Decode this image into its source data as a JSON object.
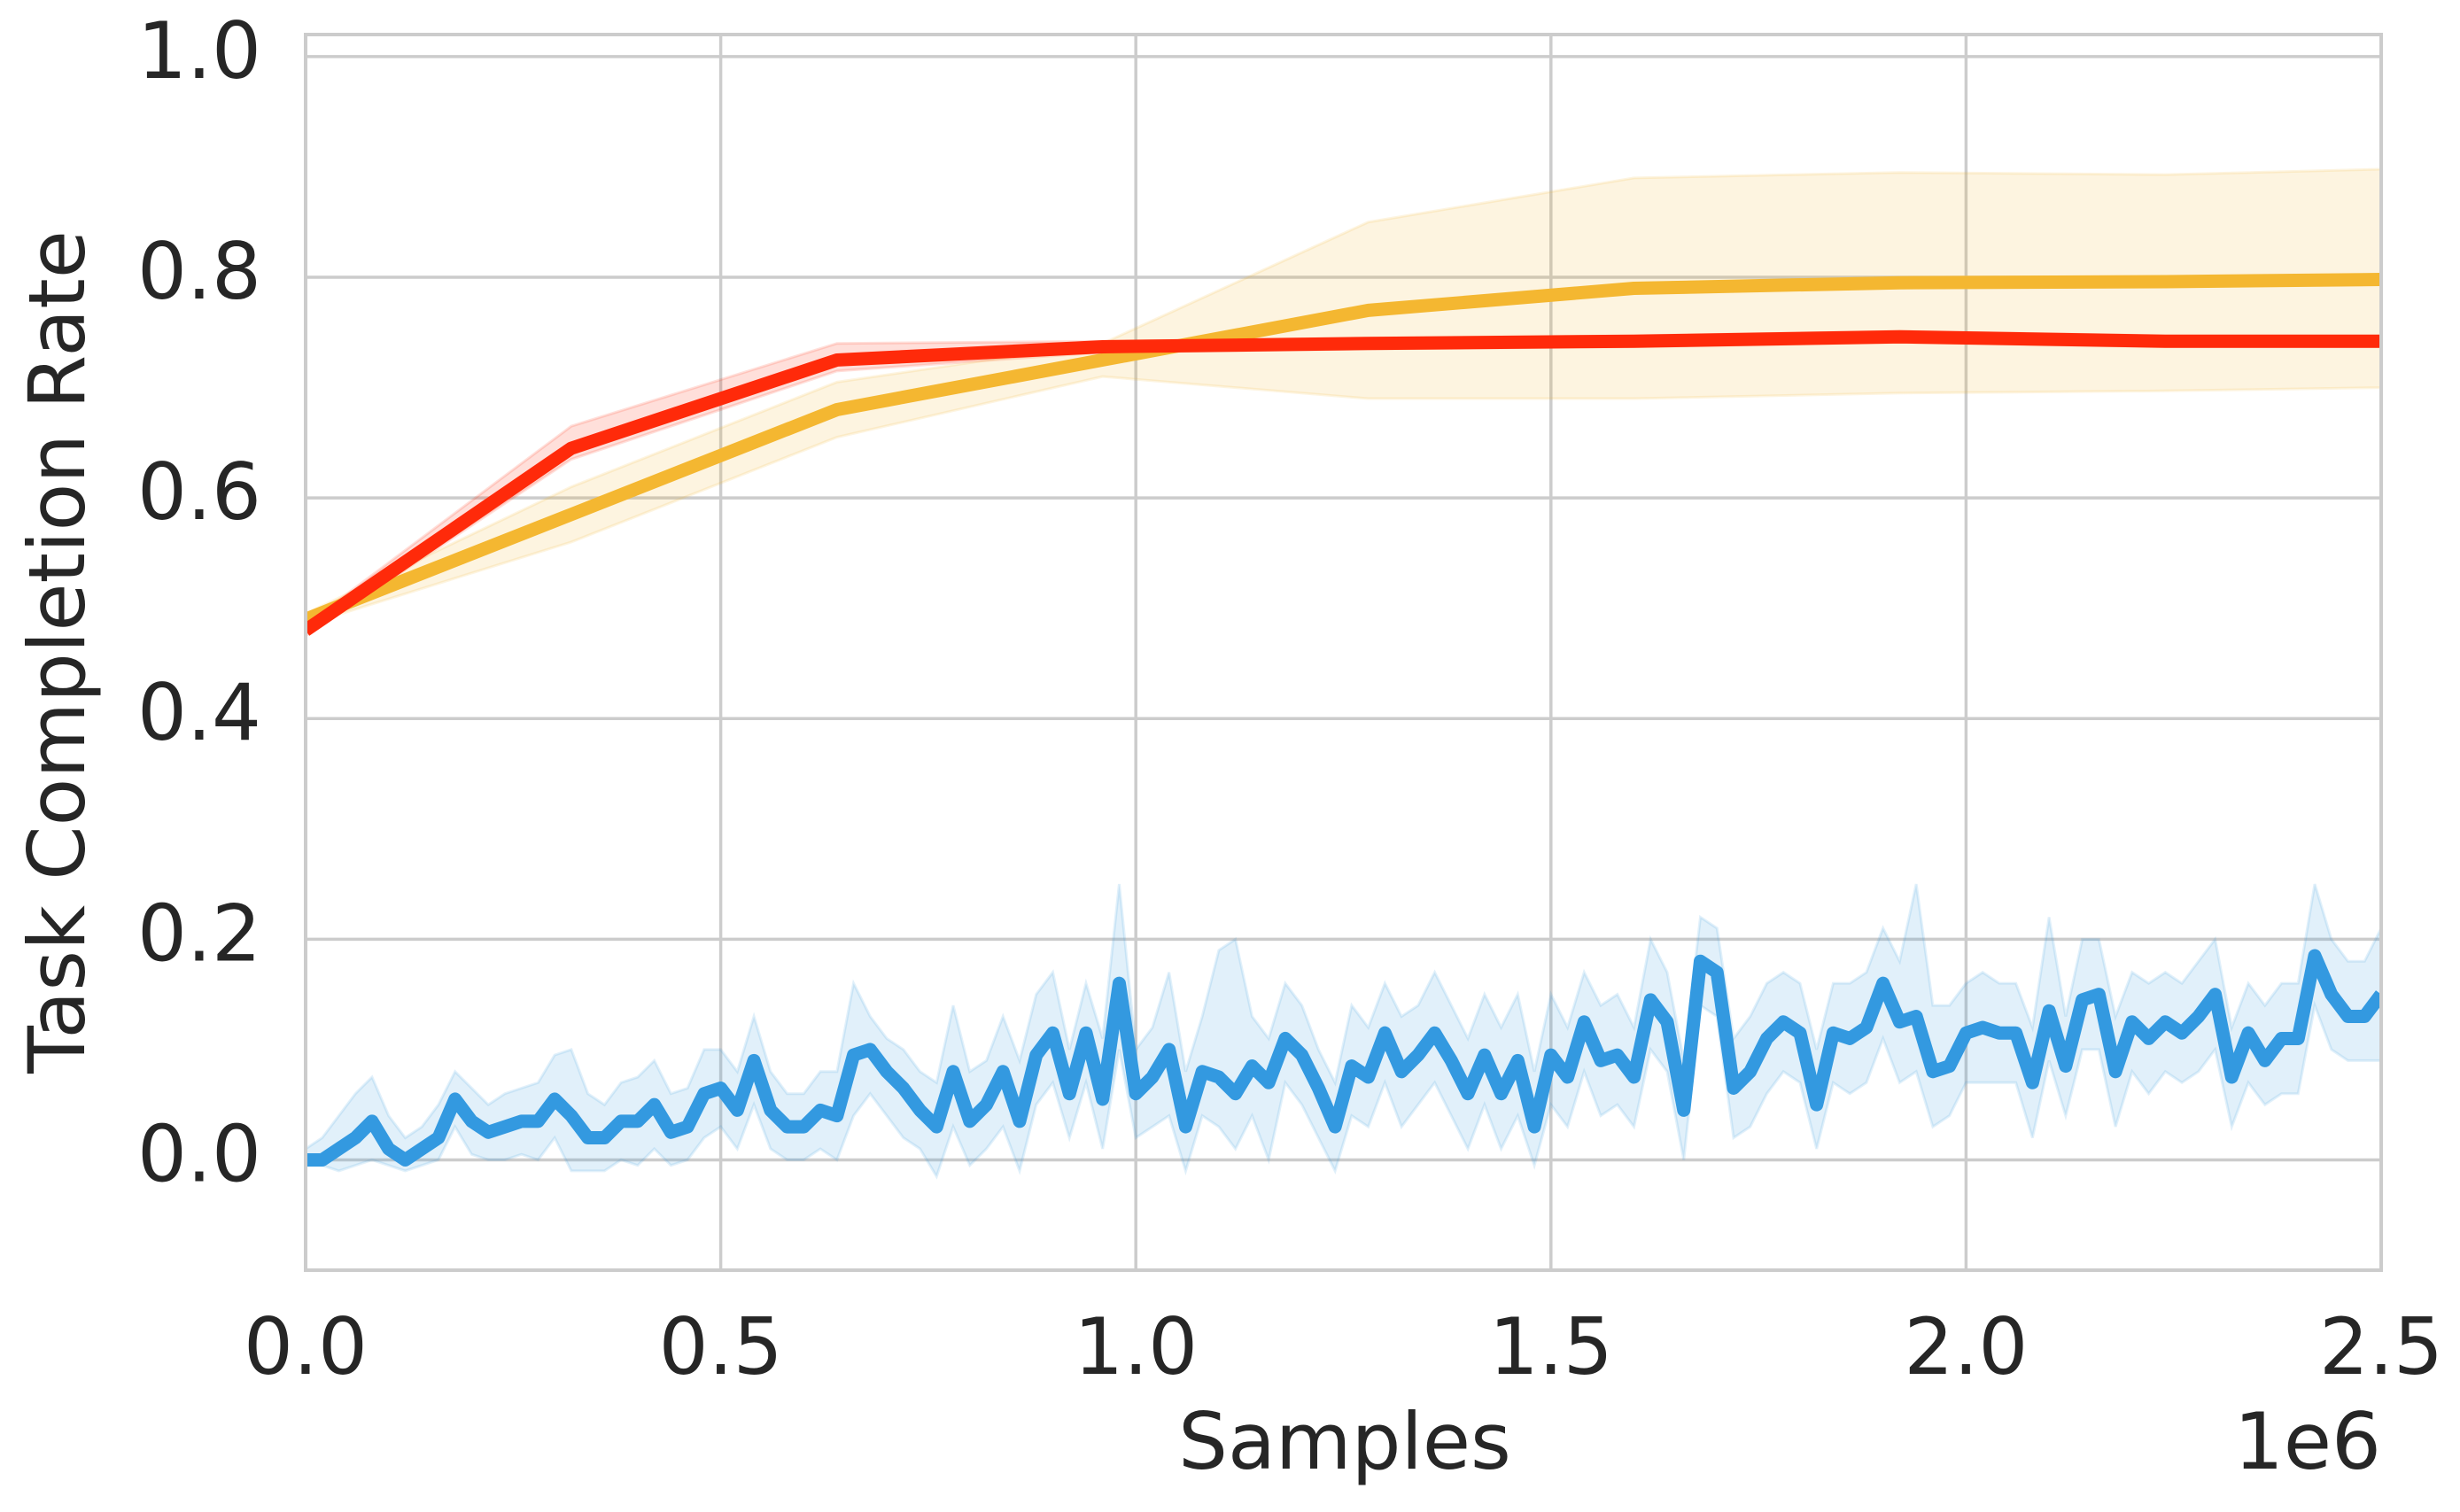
{
  "chart_data": {
    "type": "line",
    "xlabel": "Samples",
    "ylabel": "Task Completion Rate",
    "x_offset_label": "1e6",
    "xlim": [
      0,
      2.5
    ],
    "ylim": [
      -0.1,
      1.02
    ],
    "xticks": [
      {
        "value": 0,
        "label": "0.0"
      },
      0.5,
      {
        "value": 1,
        "label": "1.0"
      },
      1.5,
      {
        "value": 2,
        "label": "2.0"
      },
      2.5
    ],
    "yticks": [
      {
        "value": 0,
        "label": "0.0"
      },
      0.2,
      0.4,
      0.6,
      0.8,
      {
        "value": 1,
        "label": "1.0"
      }
    ],
    "grid": true,
    "series": [
      {
        "color": "#3399e0",
        "x": [
          0,
          0.02,
          0.04,
          0.06,
          0.08,
          0.1,
          0.12,
          0.14,
          0.16,
          0.18,
          0.2,
          0.22,
          0.24,
          0.26,
          0.28,
          0.3,
          0.32,
          0.34,
          0.36,
          0.38,
          0.4,
          0.42,
          0.44,
          0.46,
          0.48,
          0.5,
          0.52,
          0.54,
          0.56,
          0.58,
          0.6,
          0.62,
          0.64,
          0.66,
          0.68,
          0.7,
          0.72,
          0.74,
          0.76,
          0.78,
          0.8,
          0.82,
          0.84,
          0.86,
          0.88,
          0.9,
          0.92,
          0.94,
          0.96,
          0.98,
          1,
          1.02,
          1.04,
          1.06,
          1.08,
          1.1,
          1.12,
          1.14,
          1.16,
          1.18,
          1.2,
          1.22,
          1.24,
          1.26,
          1.28,
          1.3,
          1.32,
          1.34,
          1.36,
          1.38,
          1.4,
          1.42,
          1.44,
          1.46,
          1.48,
          1.5,
          1.52,
          1.54,
          1.56,
          1.58,
          1.6,
          1.62,
          1.64,
          1.66,
          1.68,
          1.7,
          1.72,
          1.74,
          1.76,
          1.78,
          1.8,
          1.82,
          1.84,
          1.86,
          1.88,
          1.9,
          1.92,
          1.94,
          1.96,
          1.98,
          2,
          2.02,
          2.04,
          2.06,
          2.08,
          2.1,
          2.12,
          2.14,
          2.16,
          2.18,
          2.2,
          2.22,
          2.24,
          2.26,
          2.28,
          2.3,
          2.32,
          2.34,
          2.36,
          2.38,
          2.4,
          2.42,
          2.44,
          2.46,
          2.48,
          2.5
        ],
        "values": [
          0,
          0,
          0.01,
          0.02,
          0.035,
          0.01,
          0,
          0.01,
          0.02,
          0.055,
          0.035,
          0.025,
          0.03,
          0.035,
          0.035,
          0.055,
          0.04,
          0.02,
          0.02,
          0.035,
          0.035,
          0.05,
          0.025,
          0.03,
          0.06,
          0.065,
          0.045,
          0.09,
          0.045,
          0.03,
          0.03,
          0.045,
          0.04,
          0.095,
          0.1,
          0.08,
          0.065,
          0.045,
          0.03,
          0.08,
          0.035,
          0.05,
          0.08,
          0.035,
          0.095,
          0.115,
          0.06,
          0.115,
          0.055,
          0.16,
          0.06,
          0.075,
          0.1,
          0.03,
          0.08,
          0.075,
          0.06,
          0.085,
          0.07,
          0.11,
          0.095,
          0.065,
          0.03,
          0.085,
          0.075,
          0.115,
          0.08,
          0.095,
          0.115,
          0.09,
          0.06,
          0.095,
          0.06,
          0.09,
          0.03,
          0.095,
          0.075,
          0.125,
          0.09,
          0.095,
          0.075,
          0.145,
          0.125,
          0.045,
          0.18,
          0.17,
          0.065,
          0.08,
          0.11,
          0.125,
          0.115,
          0.05,
          0.115,
          0.11,
          0.12,
          0.16,
          0.125,
          0.13,
          0.08,
          0.085,
          0.115,
          0.12,
          0.115,
          0.115,
          0.07,
          0.135,
          0.085,
          0.145,
          0.15,
          0.08,
          0.125,
          0.11,
          0.125,
          0.115,
          0.13,
          0.15,
          0.075,
          0.115,
          0.09,
          0.11,
          0.11,
          0.185,
          0.15,
          0.13,
          0.13,
          0.15
        ],
        "upper": [
          0.01,
          0.02,
          0.04,
          0.06,
          0.075,
          0.04,
          0.02,
          0.03,
          0.05,
          0.08,
          0.065,
          0.05,
          0.06,
          0.065,
          0.07,
          0.095,
          0.1,
          0.06,
          0.05,
          0.07,
          0.075,
          0.09,
          0.06,
          0.065,
          0.1,
          0.1,
          0.08,
          0.13,
          0.08,
          0.06,
          0.06,
          0.08,
          0.08,
          0.16,
          0.13,
          0.11,
          0.1,
          0.08,
          0.07,
          0.14,
          0.08,
          0.09,
          0.13,
          0.09,
          0.15,
          0.17,
          0.1,
          0.16,
          0.11,
          0.25,
          0.1,
          0.12,
          0.17,
          0.08,
          0.13,
          0.19,
          0.2,
          0.13,
          0.11,
          0.16,
          0.14,
          0.1,
          0.07,
          0.14,
          0.12,
          0.16,
          0.13,
          0.14,
          0.17,
          0.14,
          0.11,
          0.15,
          0.12,
          0.15,
          0.08,
          0.15,
          0.12,
          0.17,
          0.14,
          0.15,
          0.12,
          0.2,
          0.17,
          0.09,
          0.22,
          0.21,
          0.11,
          0.13,
          0.16,
          0.17,
          0.16,
          0.1,
          0.16,
          0.16,
          0.17,
          0.21,
          0.18,
          0.25,
          0.14,
          0.14,
          0.16,
          0.17,
          0.16,
          0.16,
          0.12,
          0.22,
          0.13,
          0.2,
          0.2,
          0.13,
          0.17,
          0.16,
          0.17,
          0.16,
          0.18,
          0.2,
          0.12,
          0.16,
          0.14,
          0.16,
          0.16,
          0.25,
          0.2,
          0.18,
          0.18,
          0.21
        ],
        "lower": [
          -0.005,
          -0.005,
          -0.01,
          -0.005,
          0,
          -0.005,
          -0.01,
          -0.005,
          0,
          0.03,
          0.005,
          0,
          0,
          0.005,
          0,
          0.02,
          -0.01,
          -0.01,
          -0.01,
          0,
          -0.005,
          0.01,
          -0.005,
          0,
          0.02,
          0.03,
          0.01,
          0.05,
          0.01,
          0,
          0,
          0.01,
          0,
          0.04,
          0.06,
          0.04,
          0.02,
          0.01,
          -0.015,
          0.03,
          -0.005,
          0.01,
          0.03,
          -0.01,
          0.05,
          0.07,
          0.02,
          0.07,
          0.01,
          0.1,
          0.02,
          0.03,
          0.04,
          -0.01,
          0.04,
          0.03,
          0.01,
          0.04,
          0,
          0.07,
          0.05,
          0.02,
          -0.01,
          0.04,
          0.03,
          0.07,
          0.03,
          0.05,
          0.07,
          0.04,
          0.01,
          0.05,
          0.01,
          0.04,
          -0.005,
          0.05,
          0.03,
          0.08,
          0.04,
          0.05,
          0.03,
          0.1,
          0.08,
          0,
          0.14,
          0.13,
          0.02,
          0.03,
          0.06,
          0.08,
          0.07,
          0.01,
          0.07,
          0.06,
          0.07,
          0.11,
          0.07,
          0.08,
          0.03,
          0.04,
          0.07,
          0.07,
          0.07,
          0.07,
          0.02,
          0.09,
          0.04,
          0.1,
          0.1,
          0.03,
          0.08,
          0.06,
          0.08,
          0.07,
          0.08,
          0.1,
          0.03,
          0.07,
          0.05,
          0.06,
          0.06,
          0.14,
          0.1,
          0.09,
          0.09,
          0.09
        ]
      },
      {
        "color": "#ff2a0a",
        "x": [
          0,
          0.32,
          0.64,
          0.96,
          1.28,
          1.6,
          1.92,
          2.24,
          2.5
        ],
        "values": [
          0.48,
          0.645,
          0.725,
          0.737,
          0.74,
          0.742,
          0.746,
          0.742,
          0.742
        ],
        "upper": [
          0.485,
          0.665,
          0.74,
          0.742,
          0.745,
          0.747,
          0.751,
          0.747,
          0.747
        ],
        "lower": [
          0.475,
          0.635,
          0.715,
          0.732,
          0.735,
          0.737,
          0.741,
          0.737,
          0.737
        ]
      },
      {
        "color": "#f4b731",
        "x": [
          0,
          0.32,
          0.64,
          0.96,
          1.28,
          1.6,
          1.92,
          2.24,
          2.5
        ],
        "values": [
          0.49,
          0.585,
          0.68,
          0.725,
          0.77,
          0.79,
          0.795,
          0.796,
          0.798
        ],
        "upper": [
          0.495,
          0.61,
          0.705,
          0.74,
          0.85,
          0.89,
          0.895,
          0.893,
          0.898
        ],
        "lower": [
          0.485,
          0.56,
          0.655,
          0.71,
          0.69,
          0.69,
          0.695,
          0.697,
          0.7
        ]
      }
    ]
  }
}
